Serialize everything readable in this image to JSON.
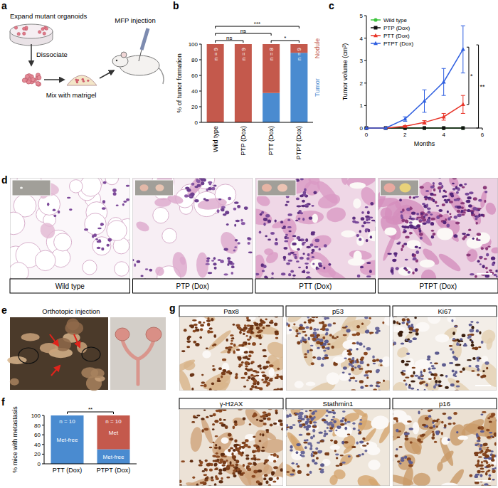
{
  "chart_data": [
    {
      "type": "bar",
      "stacked": true,
      "ylabel": "% of tumor formation",
      "categories": [
        "Wild type",
        "PTP (Dox)",
        "PTT (Dox)",
        "PTPT (Dox)"
      ],
      "series": [
        {
          "name": "Tumor",
          "color": "#4a8bd0",
          "values": [
            0,
            0,
            37.5,
            88.9
          ]
        },
        {
          "name": "Nodule",
          "color": "#c4594c",
          "values": [
            100,
            100,
            62.5,
            11.1
          ]
        }
      ],
      "n_labels": [
        "n = 9",
        "n = 9",
        "n = 8",
        "n = 9"
      ],
      "ylim": [
        0,
        100
      ],
      "yticks": [
        0,
        20,
        40,
        60,
        80,
        100
      ],
      "annotations": [
        {
          "from": 0,
          "to": 1,
          "label": "ns"
        },
        {
          "from": 2,
          "to": 3,
          "label": "*"
        },
        {
          "from": 0,
          "to": 2,
          "label": "ns"
        },
        {
          "from": 0,
          "to": 3,
          "label": "***"
        }
      ]
    },
    {
      "type": "line",
      "xlabel": "Months",
      "ylabel": "Tumor volume (cm³)",
      "x": [
        0,
        1,
        2,
        3,
        4,
        5
      ],
      "xlim": [
        0,
        6
      ],
      "xticks": [
        0,
        2,
        4,
        6
      ],
      "ylim": [
        0,
        5
      ],
      "yticks": [
        0,
        1,
        2,
        3,
        4,
        5
      ],
      "legend": "upper left",
      "series": [
        {
          "name": "Wild type",
          "color": "#3cc43c",
          "marker": "circle",
          "values": [
            0,
            0,
            0,
            0,
            0,
            0
          ]
        },
        {
          "name": "PTP (Dox)",
          "color": "#111111",
          "marker": "square",
          "values": [
            0,
            0,
            0,
            0,
            0,
            0
          ]
        },
        {
          "name": "PTT (Dox)",
          "color": "#e8362a",
          "marker": "triangle",
          "values": [
            0,
            0,
            0.08,
            0.25,
            0.5,
            1.05
          ],
          "errors": [
            null,
            null,
            0.03,
            0.08,
            0.15,
            0.4
          ]
        },
        {
          "name": "PTPT (Dox)",
          "color": "#2f5fe0",
          "marker": "triangle",
          "values": [
            0,
            0,
            0.4,
            1.2,
            2.05,
            3.5
          ],
          "errors": [
            null,
            null,
            0.1,
            0.5,
            0.6,
            1.05
          ]
        }
      ],
      "annotations": [
        {
          "x": 5.3,
          "y_from": 1.05,
          "y_to": 3.6,
          "label": "*"
        },
        {
          "x": 5.8,
          "y_from": 0,
          "y_to": 3.7,
          "label": "**"
        }
      ]
    },
    {
      "type": "bar",
      "stacked": true,
      "ylabel": "% mice with metastasis",
      "categories": [
        "PTT (Dox)",
        "PTPT (Dox)"
      ],
      "series": [
        {
          "name": "Met-free",
          "color": "#4a8bd0",
          "values": [
            100,
            30
          ]
        },
        {
          "name": "Met",
          "color": "#c4594c",
          "values": [
            0,
            70
          ]
        }
      ],
      "n_labels": [
        "n = 10",
        "n = 10"
      ],
      "ylim": [
        0,
        100
      ],
      "yticks": [
        0,
        20,
        40,
        60,
        80,
        100
      ],
      "annotations": [
        {
          "from": 0,
          "to": 1,
          "label": "**"
        }
      ]
    }
  ],
  "figure": {
    "panel_labels": [
      "a",
      "b",
      "c",
      "d",
      "e",
      "f",
      "g"
    ],
    "schematic": {
      "steps": [
        "Expand mutant organoids",
        "Dissociate",
        "Mix with matrigel",
        "MFP injection"
      ]
    },
    "histology": {
      "labels": [
        "Wild type",
        "PTP (Dox)",
        "PTT (Dox)",
        "PTPT (Dox)"
      ]
    },
    "orthotopic": {
      "label": "Orthotopic injection"
    },
    "ihc": {
      "labels": [
        "Pax8",
        "p53",
        "Ki67",
        "γ-H2AX",
        "Stathmin1",
        "p16"
      ]
    }
  }
}
